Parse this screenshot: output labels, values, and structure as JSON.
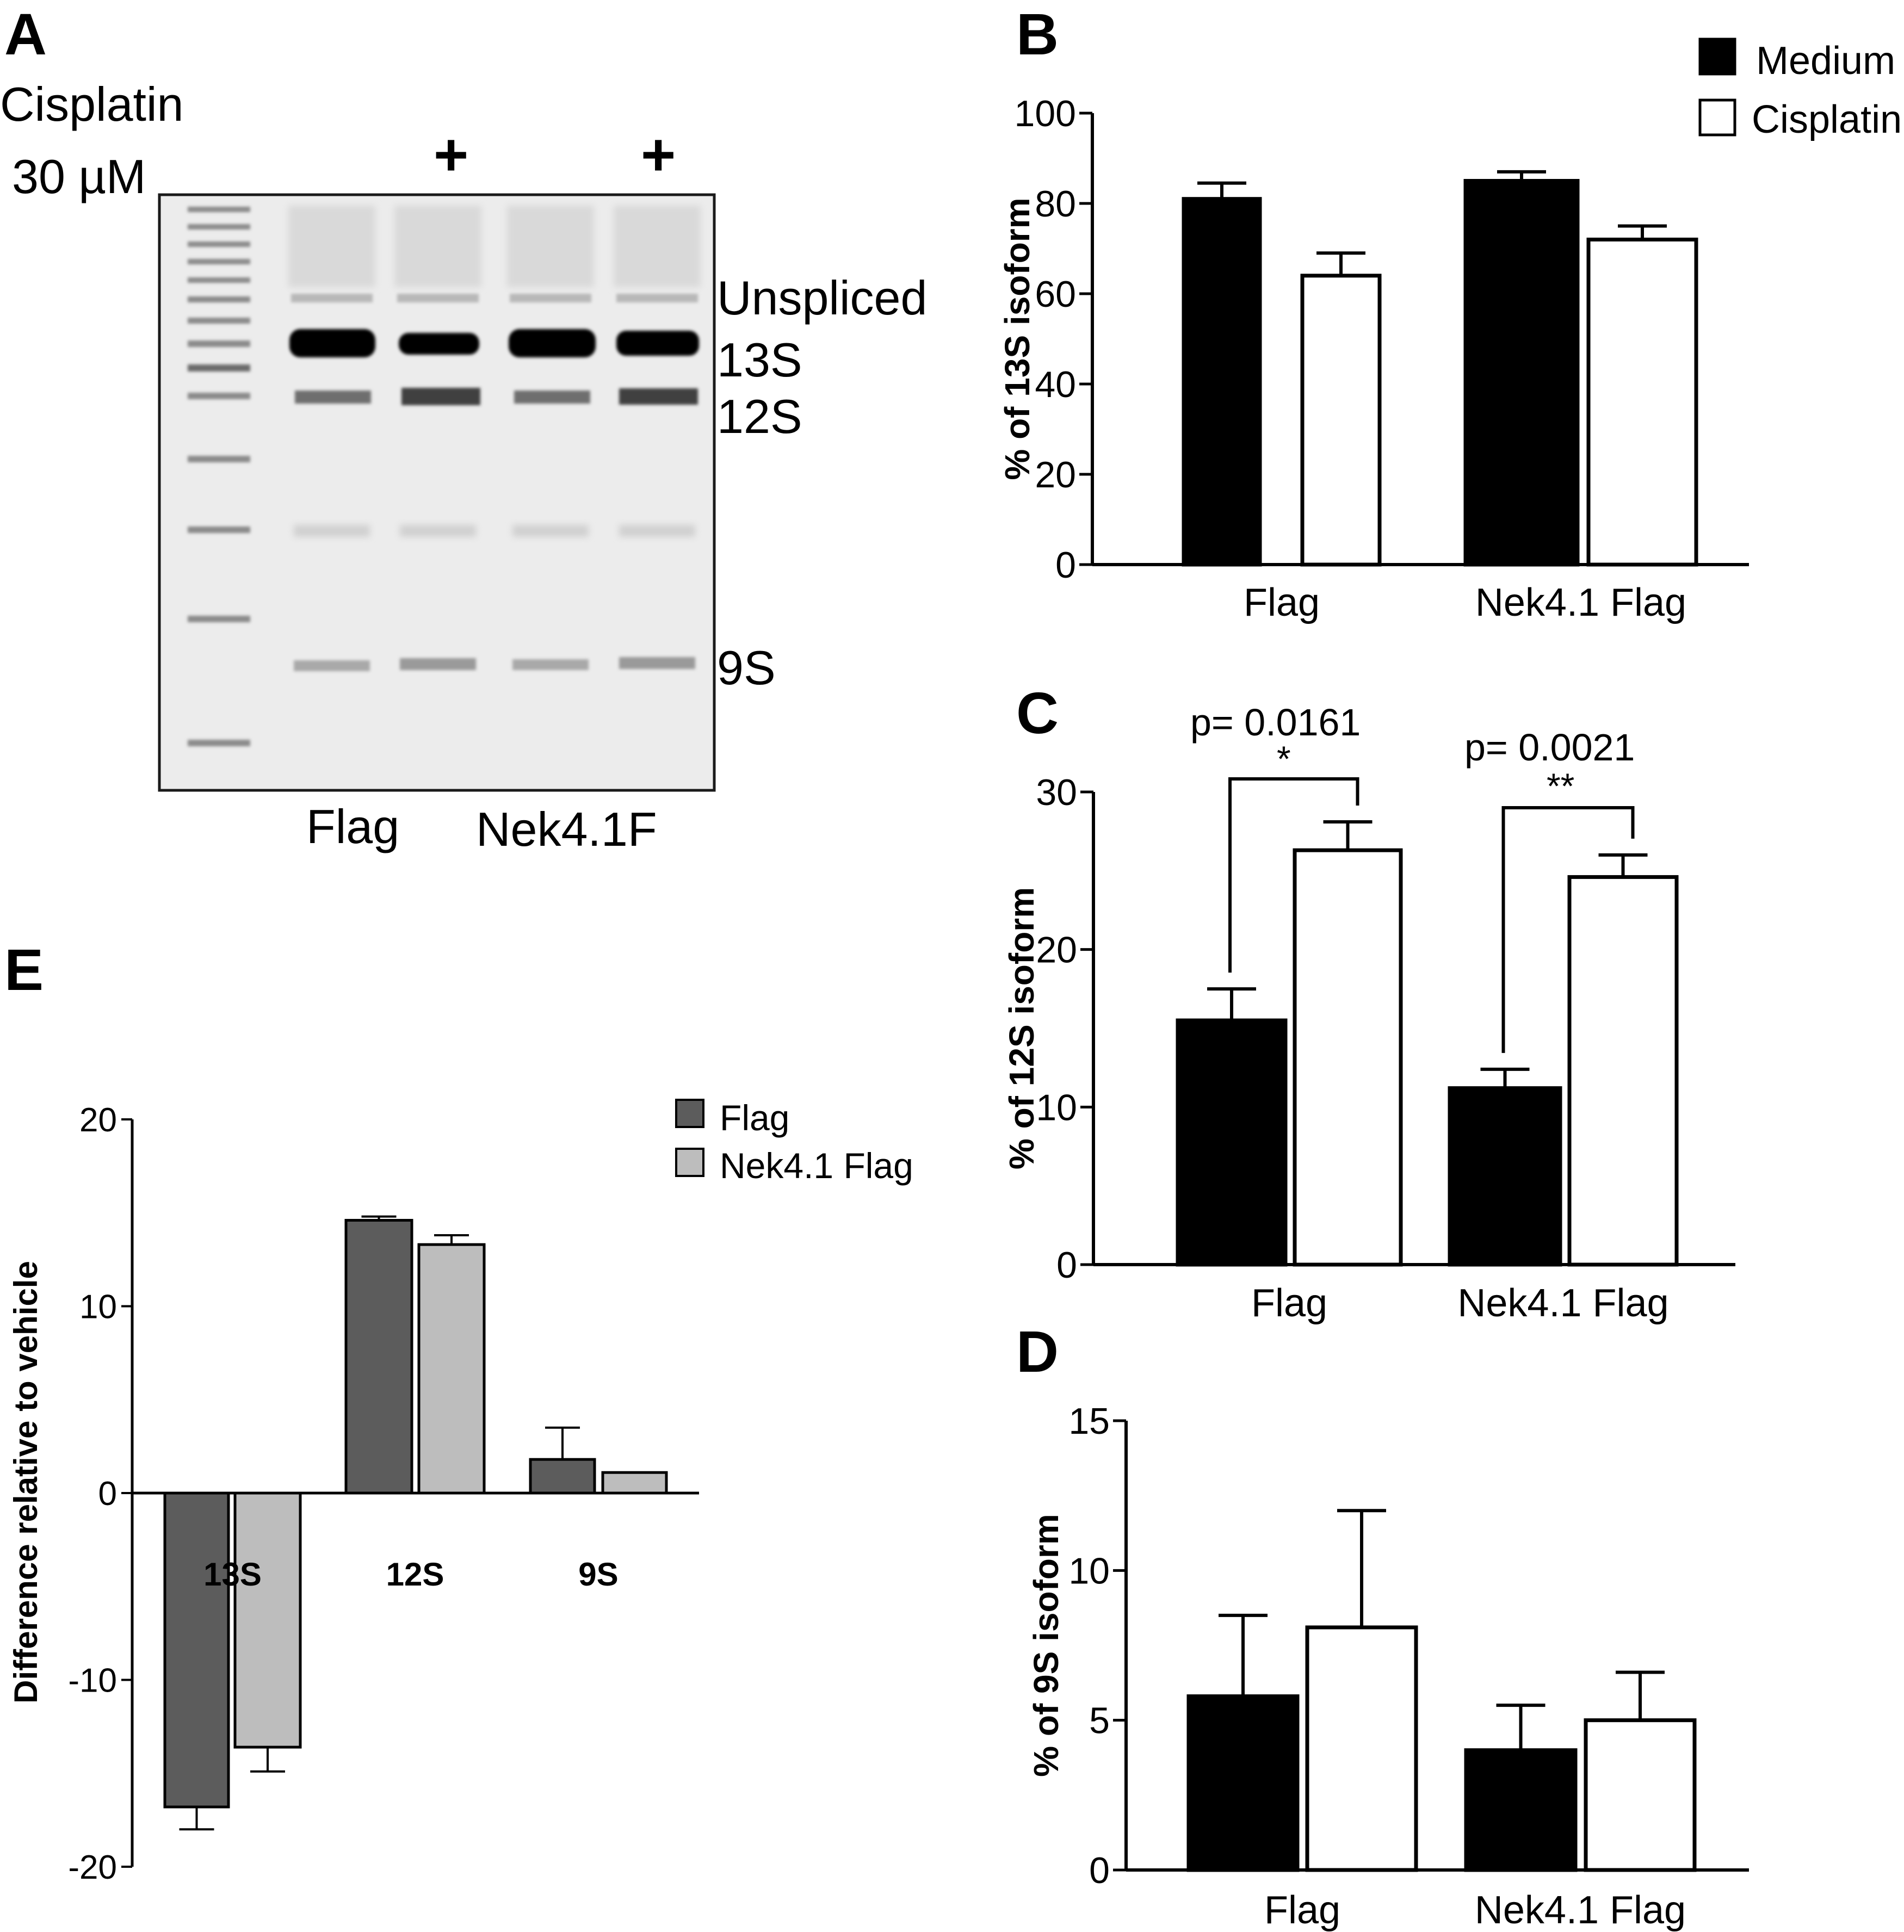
{
  "panels": {
    "A": {
      "letter": "A",
      "cisplatin_label": "Cisplatin",
      "dose_label": "30 µM",
      "plus_mark": "+",
      "band_labels": [
        "Unspliced",
        "13S",
        "12S",
        "9S"
      ],
      "lane_labels": [
        "Flag",
        "Nek4.1F"
      ]
    },
    "B": {
      "letter": "B"
    },
    "C": {
      "letter": "C"
    },
    "D": {
      "letter": "D"
    },
    "E": {
      "letter": "E"
    }
  },
  "legend_main": {
    "items": [
      {
        "label": "Medium",
        "color": "#000000"
      },
      {
        "label": "Cisplatin",
        "color": "#ffffff"
      }
    ]
  },
  "chart_data": [
    {
      "panel": "B",
      "type": "bar",
      "categories": [
        "Flag",
        "Nek4.1 Flag"
      ],
      "series": [
        {
          "name": "Medium",
          "values": [
            81,
            85
          ],
          "error": [
            3.5,
            2
          ],
          "color": "#000000"
        },
        {
          "name": "Cisplatin",
          "values": [
            64,
            72
          ],
          "error": [
            5,
            3
          ],
          "color": "#ffffff"
        }
      ],
      "ylabel": "% of 13S isoform",
      "ylim": [
        0,
        100
      ],
      "yticks": [
        0,
        20,
        40,
        60,
        80,
        100
      ]
    },
    {
      "panel": "C",
      "type": "bar",
      "categories": [
        "Flag",
        "Nek4.1 Flag"
      ],
      "series": [
        {
          "name": "Medium",
          "values": [
            15.5,
            11.2
          ],
          "error": [
            2,
            1.2
          ],
          "color": "#000000"
        },
        {
          "name": "Cisplatin",
          "values": [
            26.3,
            24.6
          ],
          "error": [
            1.8,
            1.4
          ],
          "color": "#ffffff"
        }
      ],
      "ylabel": "% of 12S isoform",
      "ylim": [
        0,
        30
      ],
      "yticks": [
        0,
        10,
        20,
        30
      ],
      "annotations": [
        {
          "text": "p= 0.0161",
          "stars": "*",
          "category": "Flag"
        },
        {
          "text": "p= 0.0021",
          "stars": "**",
          "category": "Nek4.1 Flag"
        }
      ]
    },
    {
      "panel": "D",
      "type": "bar",
      "categories": [
        "Flag",
        "Nek4.1 Flag"
      ],
      "series": [
        {
          "name": "Medium",
          "values": [
            5.8,
            4.0
          ],
          "error": [
            2.7,
            1.5
          ],
          "color": "#000000"
        },
        {
          "name": "Cisplatin",
          "values": [
            8.1,
            5.0
          ],
          "error": [
            3.9,
            1.6
          ],
          "color": "#ffffff"
        }
      ],
      "ylabel": "% of 9S isoform",
      "ylim": [
        0,
        15
      ],
      "yticks": [
        0,
        5,
        10,
        15
      ]
    },
    {
      "panel": "E",
      "type": "bar",
      "categories": [
        "13S",
        "12S",
        "9S"
      ],
      "series": [
        {
          "name": "Flag",
          "values": [
            -16.8,
            14.6,
            1.8
          ],
          "error": [
            1.2,
            0.2,
            1.7
          ],
          "color": "#5c5c5c"
        },
        {
          "name": "Nek4.1 Flag",
          "values": [
            -13.6,
            13.3,
            1.1
          ],
          "error": [
            1.3,
            0.5,
            0.0
          ],
          "color": "#bdbdbd"
        }
      ],
      "ylabel": "Difference relative to vehicle",
      "ylim": [
        -20,
        20
      ],
      "yticks": [
        -20,
        -10,
        0,
        10,
        20
      ],
      "legend": [
        "Flag",
        "Nek4.1 Flag"
      ]
    }
  ]
}
